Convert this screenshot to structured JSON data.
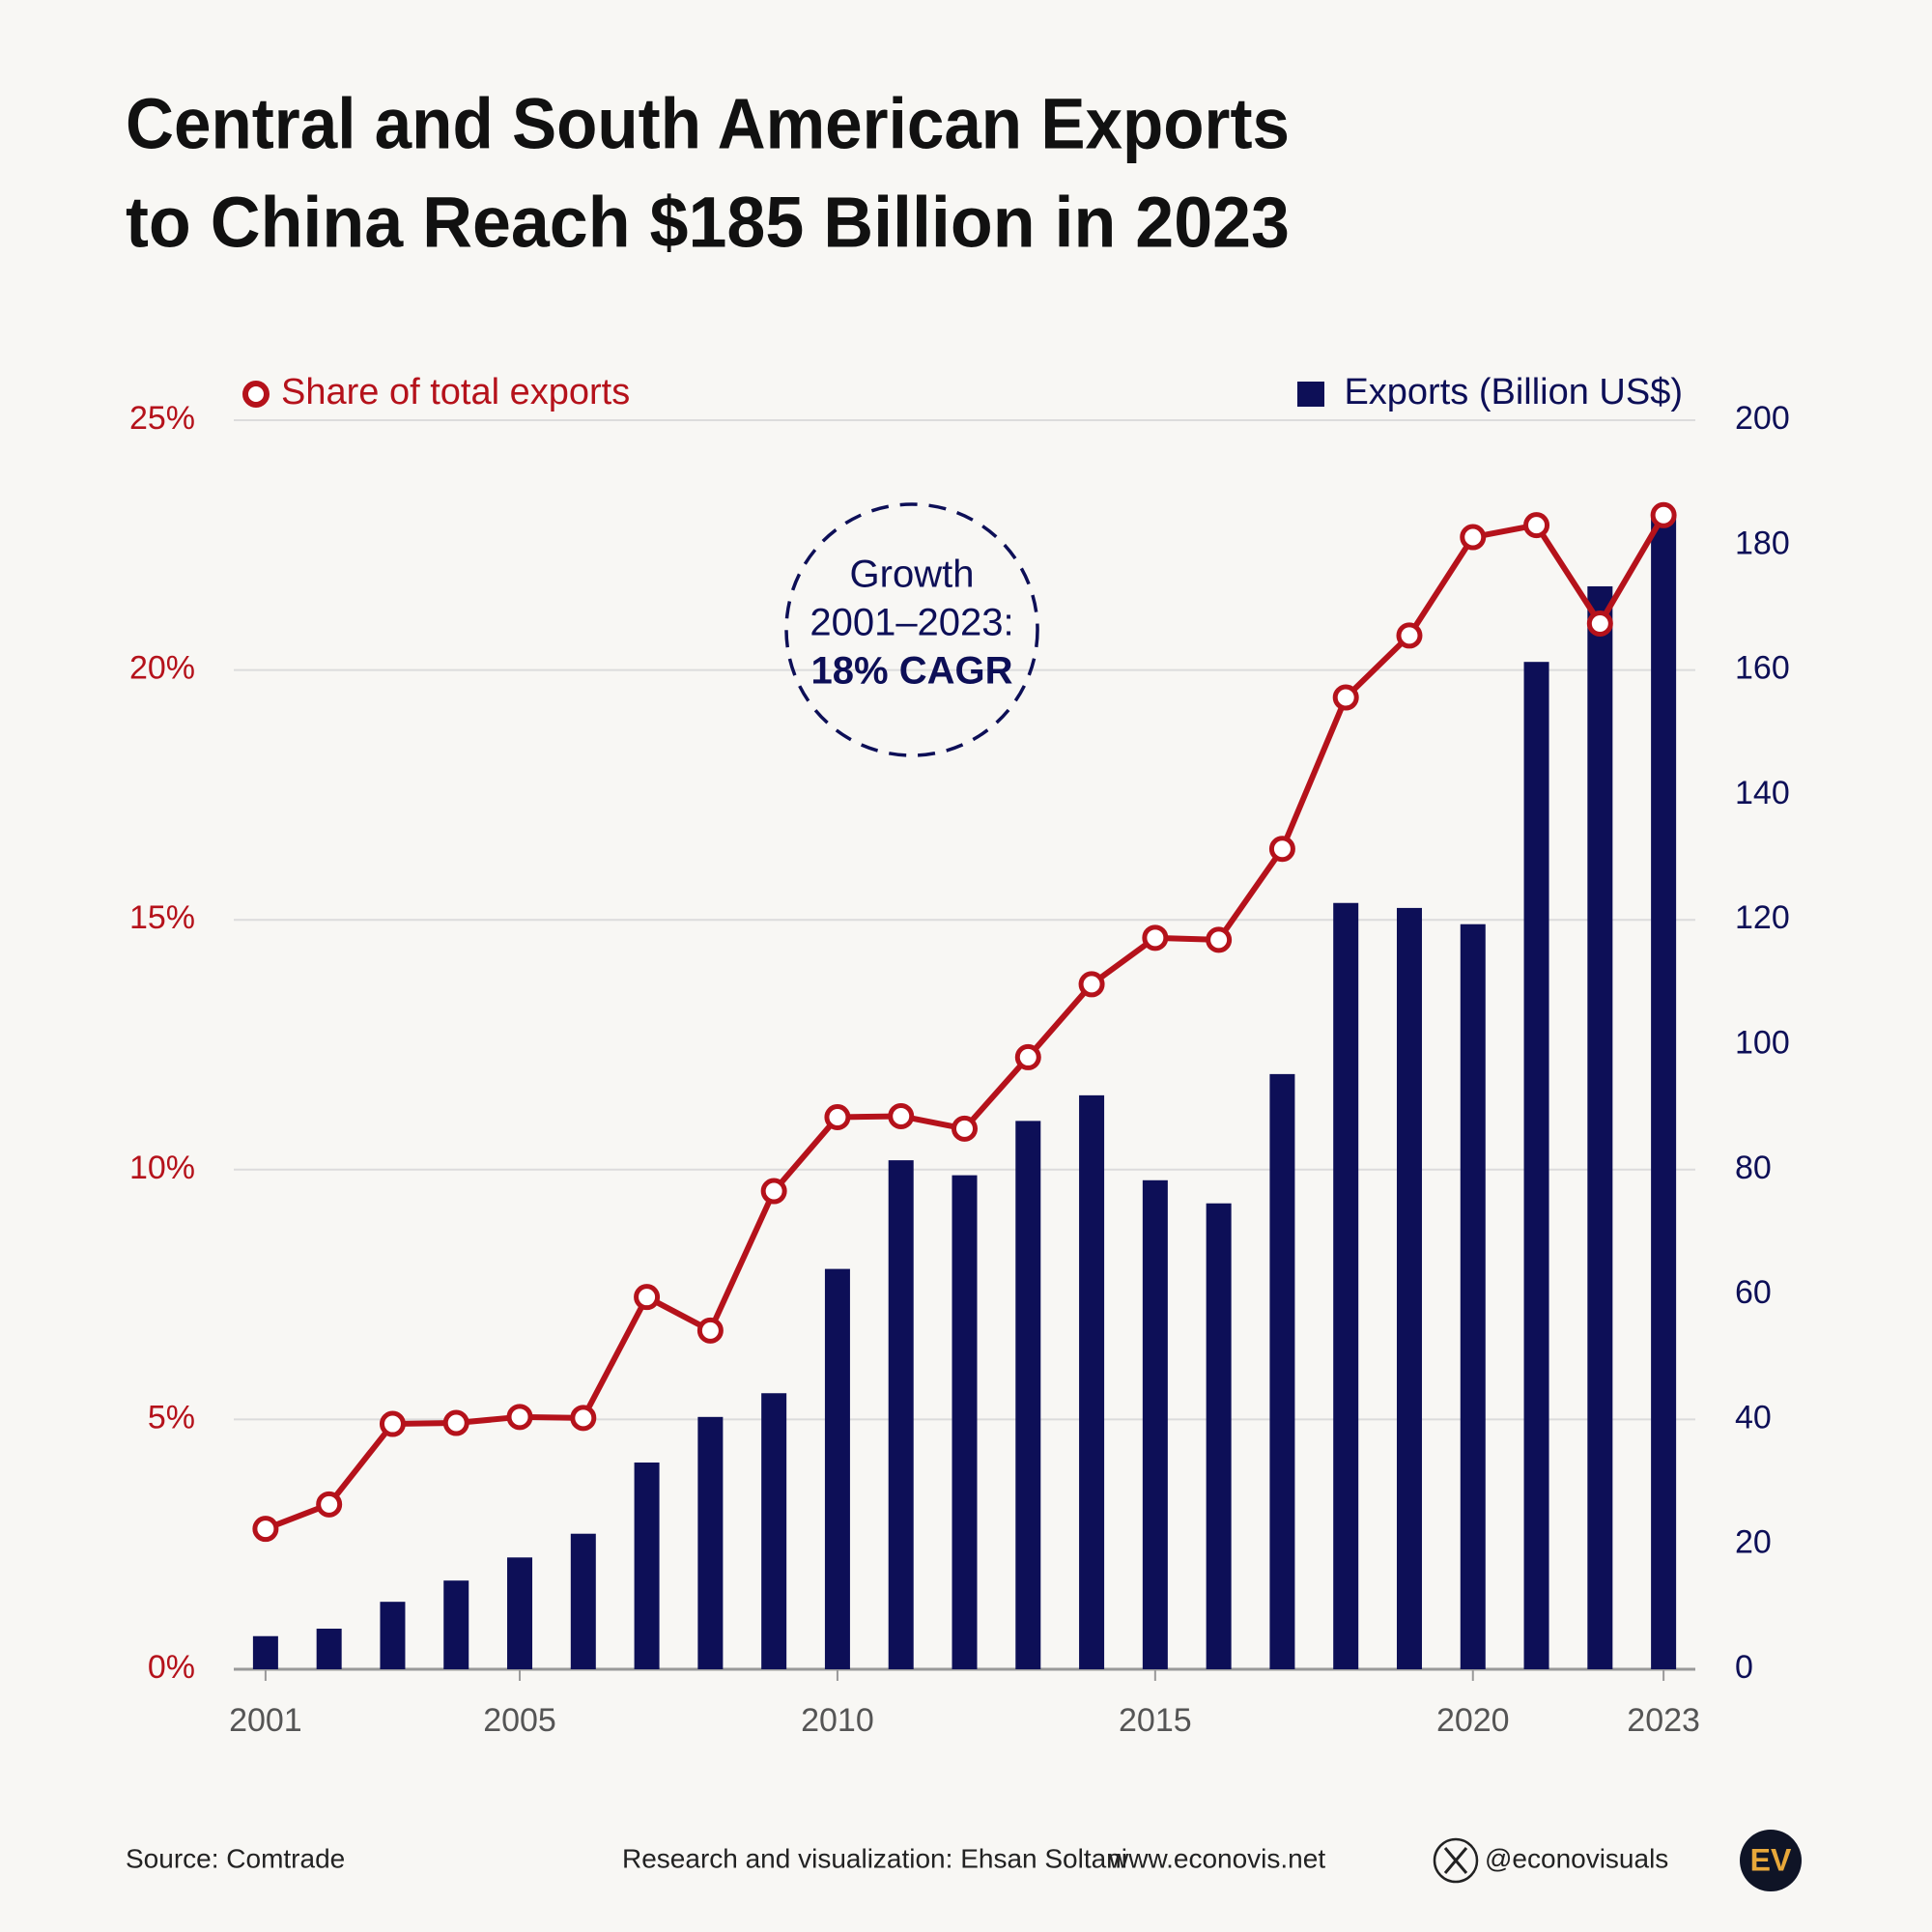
{
  "chart_data": {
    "type": "combo",
    "title": [
      "Central and South American Exports",
      "to China Reach $185 Billion in 2023"
    ],
    "x": [
      2001,
      2002,
      2003,
      2004,
      2005,
      2006,
      2007,
      2008,
      2009,
      2010,
      2011,
      2012,
      2013,
      2014,
      2015,
      2016,
      2017,
      2018,
      2019,
      2020,
      2021,
      2022,
      2023
    ],
    "xlim": [
      2000.5,
      2023.5
    ],
    "xticks": [
      2001,
      2005,
      2010,
      2015,
      2020,
      2023
    ],
    "ylim": [
      0,
      25
    ],
    "yticks": [
      {
        "value": 0,
        "label": "0%"
      },
      {
        "value": 5,
        "label": "5%"
      },
      {
        "value": 10,
        "label": "10%"
      },
      {
        "value": 15,
        "label": "15%"
      },
      {
        "value": 20,
        "label": "20%"
      },
      {
        "value": 25,
        "label": "25%"
      }
    ],
    "y2lim": [
      0,
      200
    ],
    "y2ticks": [
      0,
      20,
      40,
      60,
      80,
      100,
      120,
      140,
      160,
      180,
      200
    ],
    "grid": true,
    "series": [
      {
        "name": "Exports (Billion US$)",
        "type": "bar",
        "axis": "y2",
        "color": "#0d0f57",
        "values": [
          5.3,
          6.5,
          10.8,
          14.2,
          17.9,
          21.7,
          33.1,
          40.4,
          44.2,
          64.1,
          81.5,
          79.1,
          87.8,
          91.9,
          78.3,
          74.6,
          95.3,
          122.7,
          121.9,
          119.3,
          161.3,
          173.4,
          185
        ]
      },
      {
        "name": "Share of total exports",
        "type": "line",
        "color": "#b5121b",
        "values": [
          2.81,
          3.3,
          4.91,
          4.93,
          5.05,
          5.03,
          7.45,
          6.78,
          9.57,
          11.05,
          11.07,
          10.82,
          12.25,
          13.71,
          14.64,
          14.6,
          16.42,
          19.45,
          20.69,
          22.66,
          22.9,
          20.93,
          23.1
        ]
      }
    ],
    "annotation": [
      "Growth",
      "2001–2023:",
      "18% CAGR"
    ]
  },
  "footer": {
    "source": "Source: Comtrade",
    "credit": "Research and visualization: Ehsan Soltani",
    "website": "www.econovis.net",
    "handle": "@econovisuals",
    "logo": "EV"
  }
}
